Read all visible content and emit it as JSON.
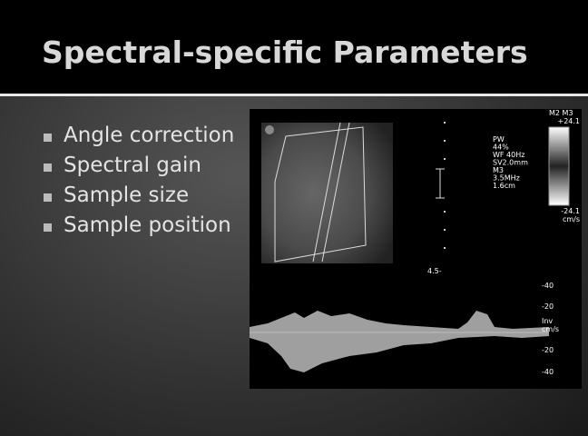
{
  "slide": {
    "title": "Spectral-specific Parameters",
    "bullets": [
      "Angle correction",
      "Spectral gain",
      "Sample size",
      "Sample position"
    ]
  },
  "image": {
    "map_label": "M2 M3",
    "scale_top": "+24.1",
    "scale_bottom": "-24.1",
    "scale_unit": "cm/s",
    "settings": [
      "PW",
      "44%",
      "WF 40Hz",
      "SV2.0mm",
      "M3",
      "3.5MHz",
      "1.6cm"
    ],
    "depth": "4.5-",
    "velocity_scale": [
      "-40",
      "-20",
      "Inv",
      "cm/s",
      "-20",
      "-40"
    ]
  }
}
